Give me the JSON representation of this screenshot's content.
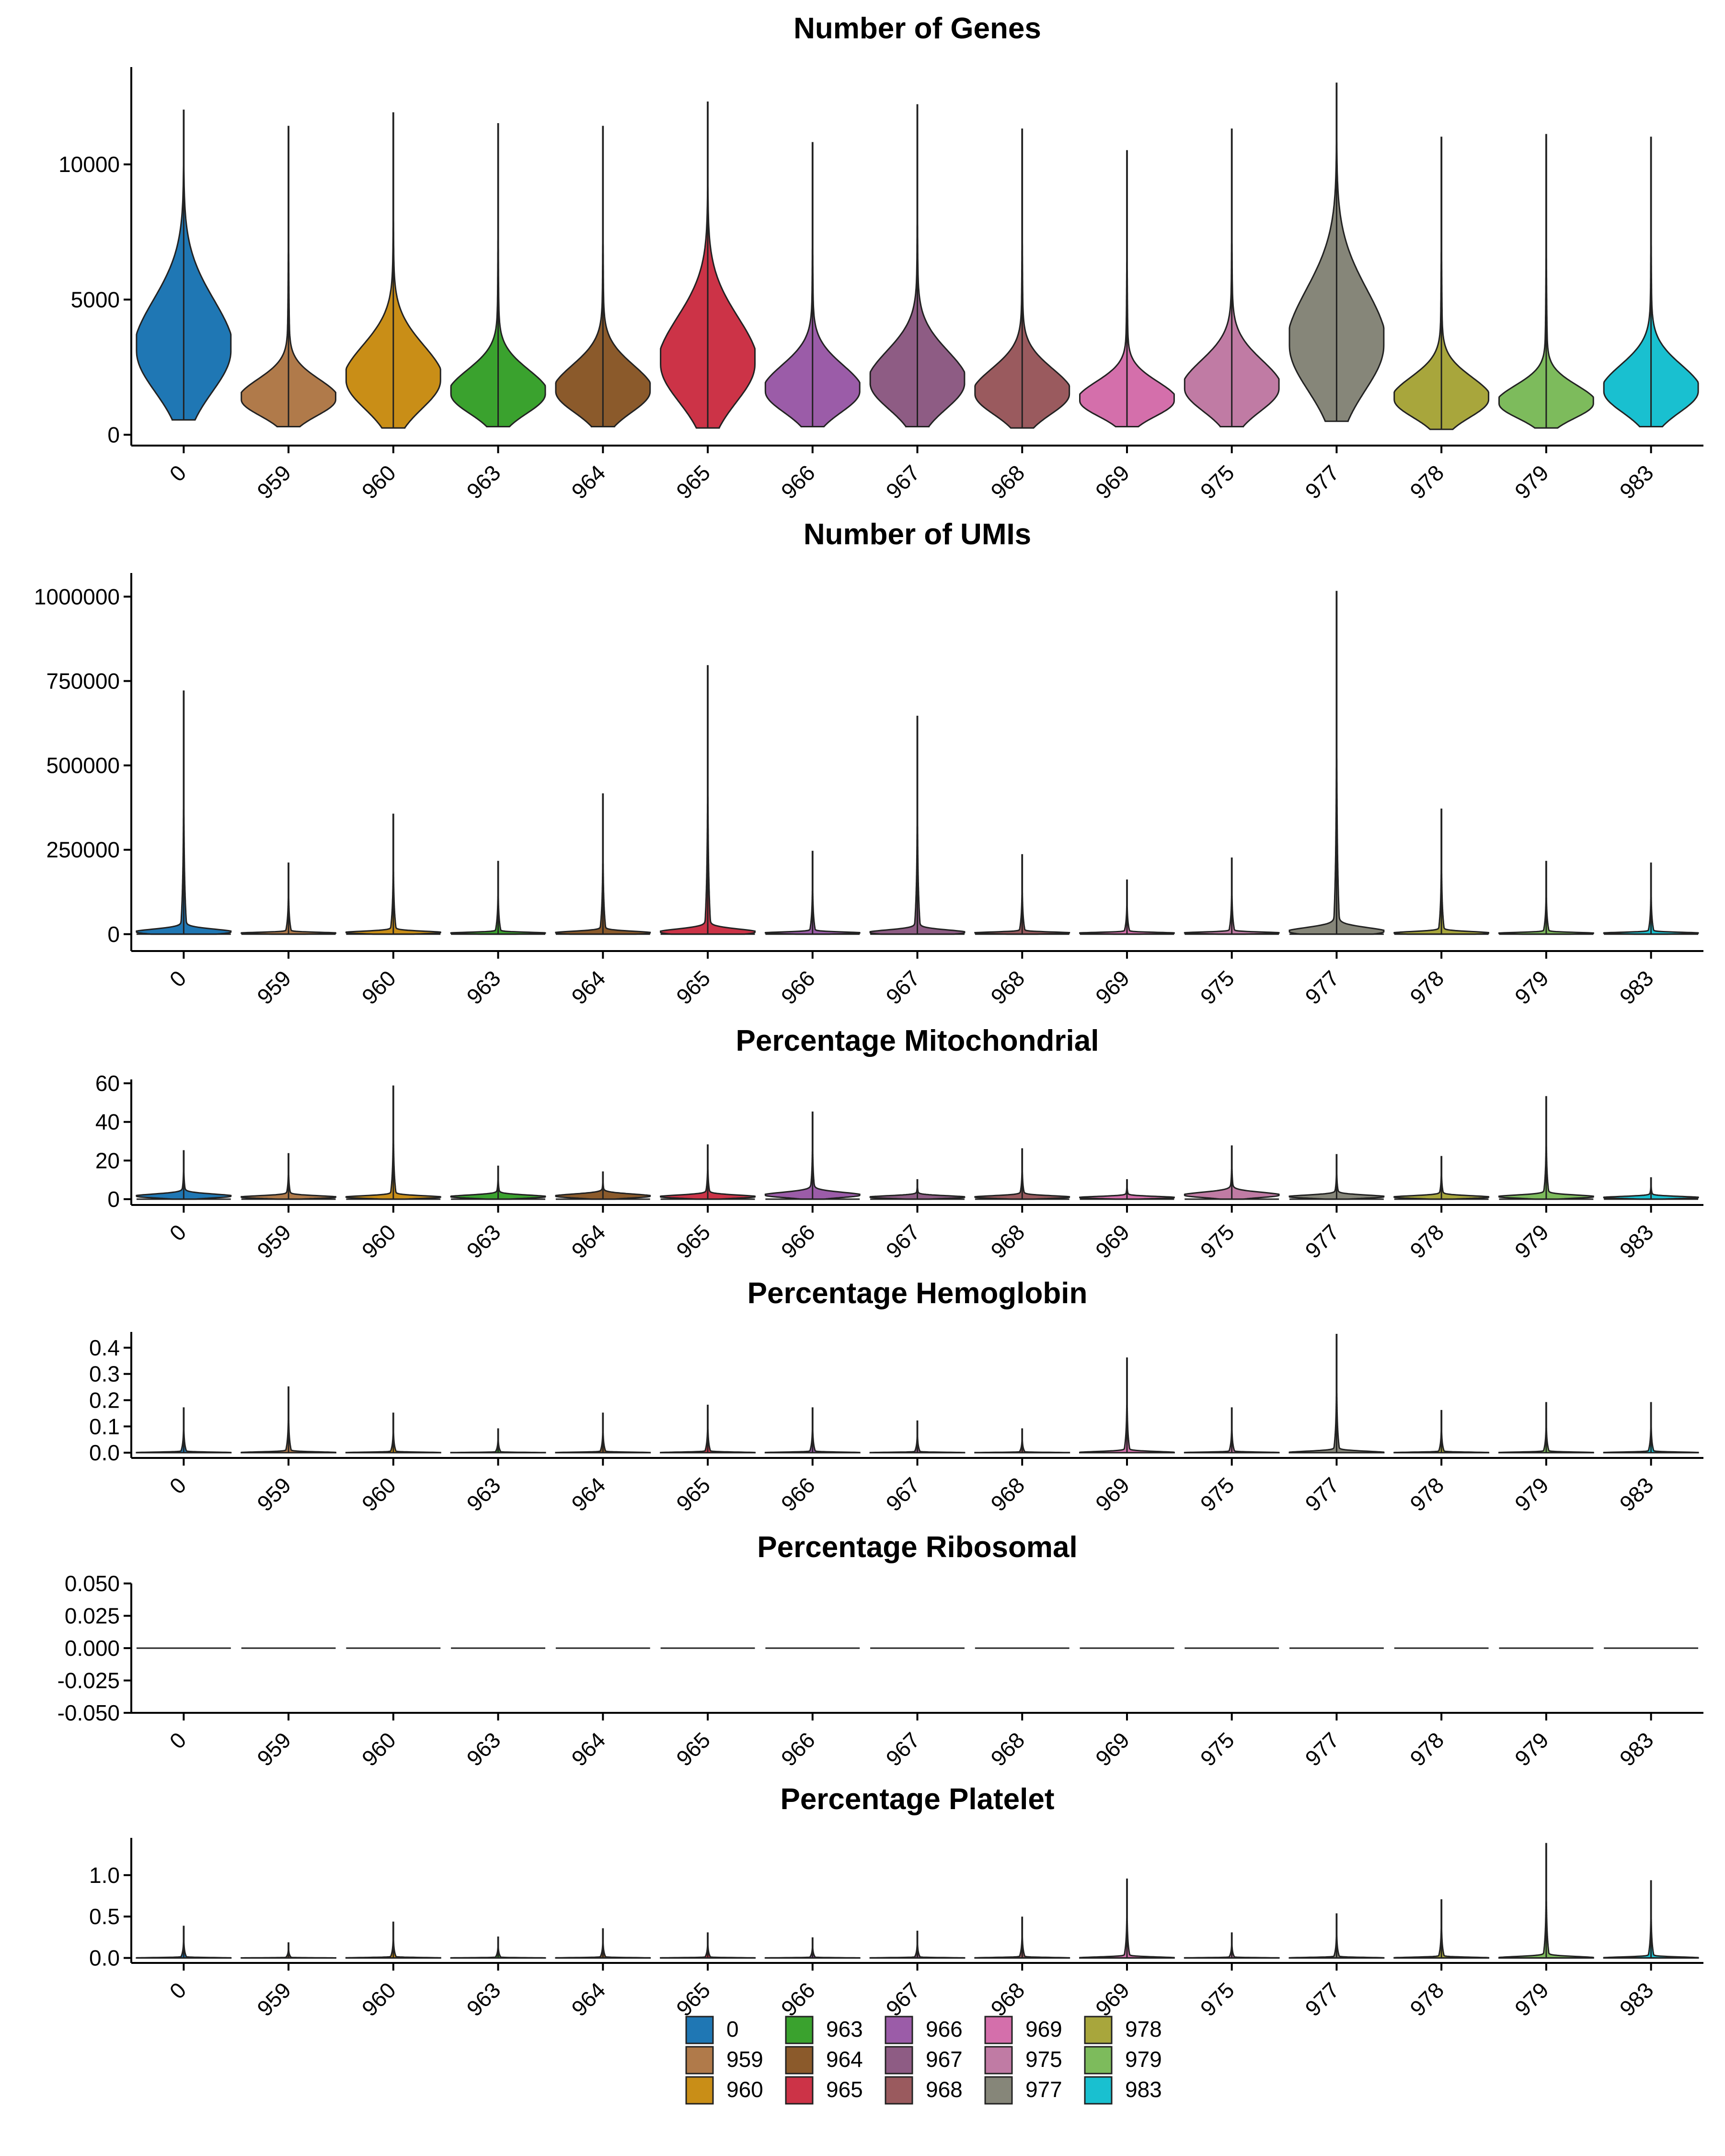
{
  "chart_data": [
    {
      "type": "violin",
      "title": "Number of Genes",
      "xlabel": "",
      "ylabel": "",
      "categories": [
        "0",
        "959",
        "960",
        "963",
        "964",
        "965",
        "966",
        "967",
        "968",
        "969",
        "975",
        "977",
        "978",
        "979",
        "983"
      ],
      "ylim": [
        -400,
        13600
      ],
      "yticks": [
        0,
        5000,
        10000
      ],
      "ytick_labels": [
        "0",
        "5000",
        "10000"
      ],
      "min": [
        550,
        300,
        250,
        300,
        300,
        250,
        300,
        300,
        250,
        300,
        300,
        500,
        200,
        250,
        300
      ],
      "max": [
        12000,
        11400,
        11900,
        11500,
        11400,
        12300,
        10800,
        12200,
        11300,
        10500,
        11300,
        13000,
        11000,
        11100,
        11000
      ],
      "median": [
        3100,
        1300,
        2000,
        1500,
        1600,
        2600,
        1600,
        1900,
        1500,
        1250,
        1700,
        3300,
        1300,
        1150,
        1600
      ]
    },
    {
      "type": "violin",
      "title": "Number of UMIs",
      "xlabel": "",
      "ylabel": "",
      "categories": [
        "0",
        "959",
        "960",
        "963",
        "964",
        "965",
        "966",
        "967",
        "968",
        "969",
        "975",
        "977",
        "978",
        "979",
        "983"
      ],
      "ylim": [
        -50000,
        1070000
      ],
      "yticks": [
        0,
        250000,
        500000,
        750000,
        1000000
      ],
      "ytick_labels": [
        "0",
        "250000",
        "500000",
        "750000",
        "1000000"
      ],
      "min": [
        0,
        0,
        0,
        0,
        0,
        0,
        0,
        0,
        0,
        0,
        0,
        0,
        0,
        0,
        0
      ],
      "max": [
        720000,
        210000,
        355000,
        215000,
        415000,
        795000,
        245000,
        645000,
        235000,
        160000,
        225000,
        1015000,
        370000,
        215000,
        210000
      ],
      "median": [
        6000,
        3000,
        4500,
        3000,
        3500,
        5500,
        3500,
        4500,
        3500,
        3000,
        3500,
        7000,
        3000,
        2500,
        3000
      ]
    },
    {
      "type": "violin",
      "title": "Percentage Mitochondrial",
      "xlabel": "",
      "ylabel": "",
      "categories": [
        "0",
        "959",
        "960",
        "963",
        "964",
        "965",
        "966",
        "967",
        "968",
        "969",
        "975",
        "977",
        "978",
        "979",
        "983"
      ],
      "ylim": [
        -3,
        62
      ],
      "yticks": [
        0,
        20,
        40,
        60
      ],
      "ytick_labels": [
        "0",
        "20",
        "40",
        "60"
      ],
      "min": [
        0,
        0,
        0,
        0,
        0,
        0,
        0,
        0,
        0,
        0,
        0,
        0,
        0,
        0,
        0
      ],
      "max": [
        25,
        23.5,
        58.5,
        17,
        14,
        28,
        45,
        10,
        26,
        10,
        27.5,
        23,
        22,
        53,
        11
      ],
      "median": [
        1.5,
        1,
        1,
        1.2,
        1.5,
        1.2,
        2,
        1,
        1,
        0.8,
        2,
        1.2,
        1,
        1.2,
        0.8
      ]
    },
    {
      "type": "violin",
      "title": "Percentage Hemoglobin",
      "xlabel": "",
      "ylabel": "",
      "categories": [
        "0",
        "959",
        "960",
        "963",
        "964",
        "965",
        "966",
        "967",
        "968",
        "969",
        "975",
        "977",
        "978",
        "979",
        "983"
      ],
      "ylim": [
        -0.02,
        0.46
      ],
      "yticks": [
        0,
        0.1,
        0.2,
        0.3,
        0.4
      ],
      "ytick_labels": [
        "0.0",
        "0.1",
        "0.2",
        "0.3",
        "0.4"
      ],
      "min": [
        0,
        0,
        0,
        0,
        0,
        0,
        0,
        0,
        0,
        0,
        0,
        0,
        0,
        0,
        0
      ],
      "max": [
        0.17,
        0.25,
        0.15,
        0.09,
        0.15,
        0.18,
        0.17,
        0.12,
        0.09,
        0.36,
        0.17,
        0.45,
        0.16,
        0.19,
        0.19
      ],
      "median": [
        0,
        0,
        0,
        0,
        0,
        0,
        0,
        0,
        0,
        0,
        0,
        0,
        0,
        0,
        0
      ]
    },
    {
      "type": "violin",
      "title": "Percentage Ribosomal",
      "xlabel": "",
      "ylabel": "",
      "categories": [
        "0",
        "959",
        "960",
        "963",
        "964",
        "965",
        "966",
        "967",
        "968",
        "969",
        "975",
        "977",
        "978",
        "979",
        "983"
      ],
      "ylim": [
        -0.05,
        0.05
      ],
      "yticks": [
        -0.05,
        -0.025,
        0,
        0.025,
        0.05
      ],
      "ytick_labels": [
        "-0.050",
        "-0.025",
        "0.000",
        "0.025",
        "0.050"
      ],
      "min": [
        0,
        0,
        0,
        0,
        0,
        0,
        0,
        0,
        0,
        0,
        0,
        0,
        0,
        0,
        0
      ],
      "max": [
        0,
        0,
        0,
        0,
        0,
        0,
        0,
        0,
        0,
        0,
        0,
        0,
        0,
        0,
        0
      ],
      "median": [
        0,
        0,
        0,
        0,
        0,
        0,
        0,
        0,
        0,
        0,
        0,
        0,
        0,
        0,
        0
      ]
    },
    {
      "type": "violin",
      "title": "Percentage Platelet",
      "xlabel": "",
      "ylabel": "",
      "categories": [
        "0",
        "959",
        "960",
        "963",
        "964",
        "965",
        "966",
        "967",
        "968",
        "969",
        "975",
        "977",
        "978",
        "979",
        "983"
      ],
      "ylim": [
        -0.06,
        1.45
      ],
      "yticks": [
        0,
        0.5,
        1.0
      ],
      "ytick_labels": [
        "0.0",
        "0.5",
        "1.0"
      ],
      "min": [
        0,
        0,
        0,
        0,
        0,
        0,
        0,
        0,
        0,
        0,
        0,
        0,
        0,
        0,
        0
      ],
      "max": [
        0.38,
        0.18,
        0.43,
        0.25,
        0.35,
        0.3,
        0.24,
        0.32,
        0.49,
        0.95,
        0.3,
        0.53,
        0.7,
        1.38,
        0.93
      ],
      "median": [
        0,
        0,
        0,
        0,
        0,
        0,
        0,
        0,
        0,
        0,
        0,
        0,
        0,
        0,
        0
      ]
    }
  ],
  "legend": {
    "position": "bottom",
    "items": [
      {
        "label": "0",
        "color": "#1f77b4"
      },
      {
        "label": "959",
        "color": "#b07a4a"
      },
      {
        "label": "960",
        "color": "#c98e17"
      },
      {
        "label": "963",
        "color": "#3aa22e"
      },
      {
        "label": "964",
        "color": "#8b5a2b"
      },
      {
        "label": "965",
        "color": "#cc3347"
      },
      {
        "label": "966",
        "color": "#9b5ca8"
      },
      {
        "label": "967",
        "color": "#8e5c84"
      },
      {
        "label": "968",
        "color": "#9a5a5e"
      },
      {
        "label": "969",
        "color": "#d46fab"
      },
      {
        "label": "975",
        "color": "#c07ba4"
      },
      {
        "label": "977",
        "color": "#868679"
      },
      {
        "label": "978",
        "color": "#a8a63c"
      },
      {
        "label": "979",
        "color": "#7dbb5c"
      },
      {
        "label": "983",
        "color": "#19c0d0"
      }
    ]
  }
}
